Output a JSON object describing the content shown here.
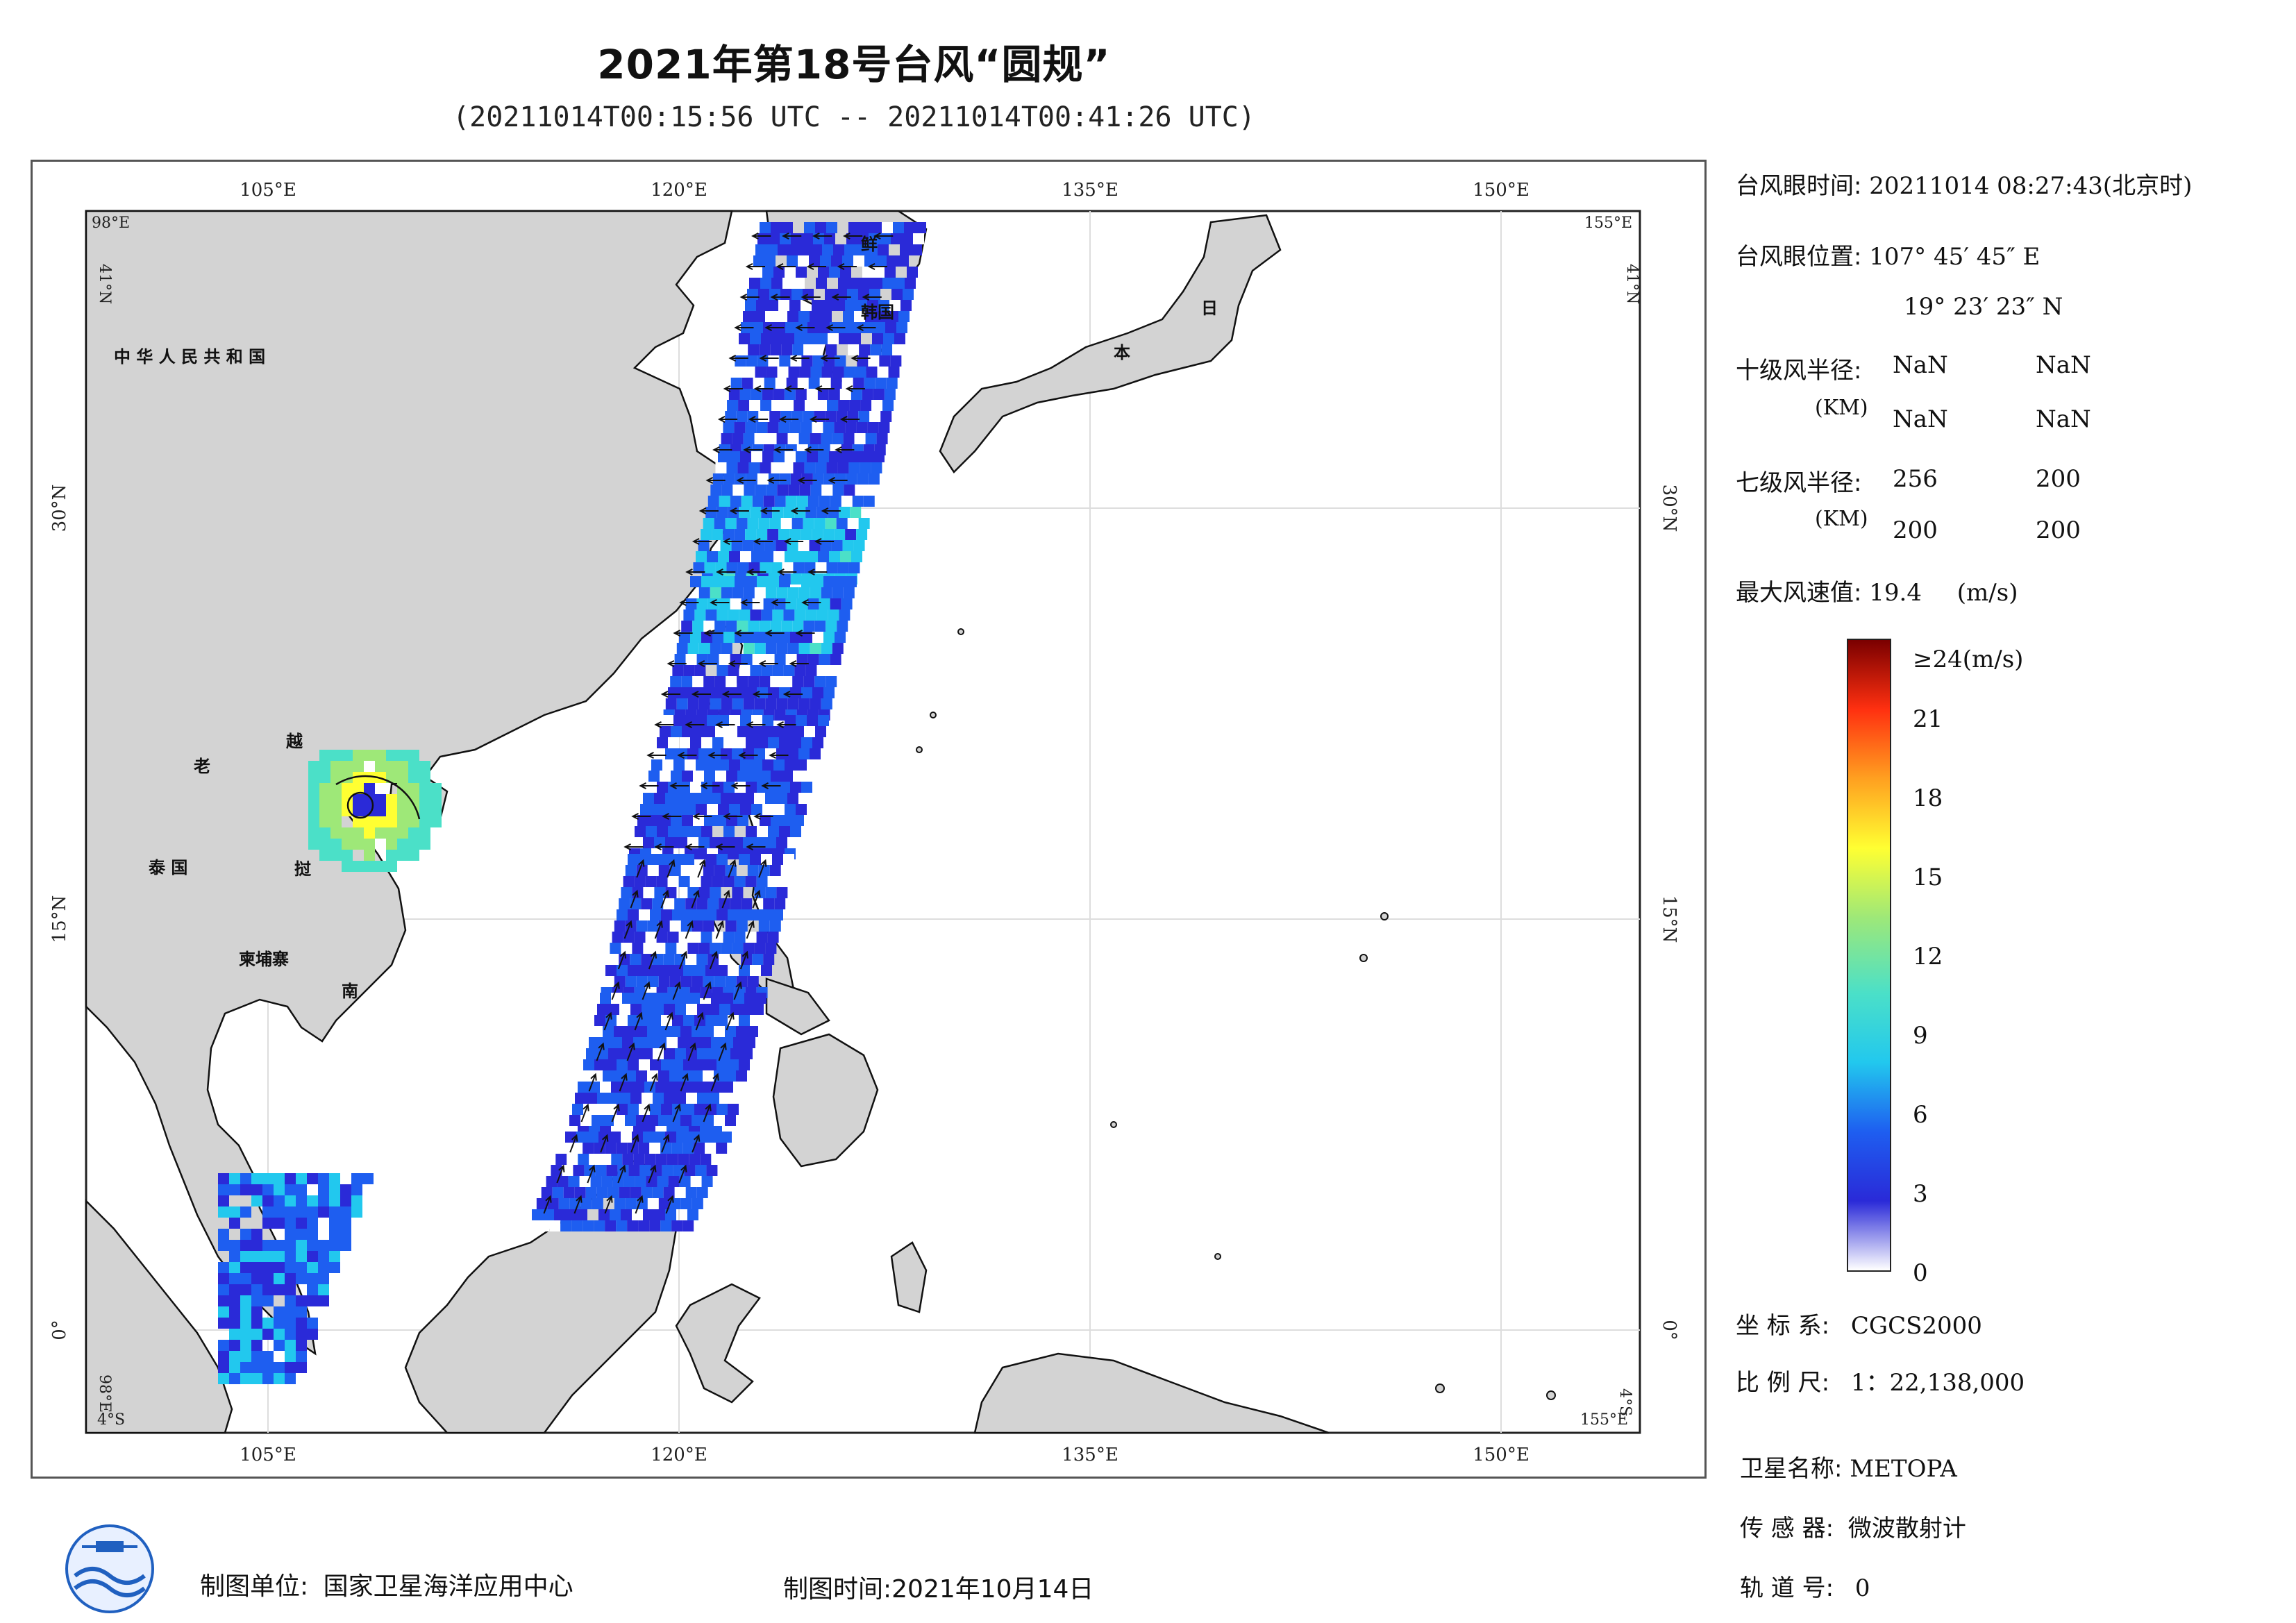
{
  "title": "2021年第18号台风“圆规”",
  "subtitle": "(20211014T00:15:56 UTC -- 20211014T00:41:26 UTC)",
  "map": {
    "lon_ticks": [
      "105°E",
      "120°E",
      "135°E",
      "150°E"
    ],
    "lat_ticks": [
      "30°N",
      "15°N",
      "0°"
    ],
    "corner_labels": {
      "top_left_lon": "98°E",
      "top_left_lat": "41°N",
      "top_right_lon": "155°E",
      "top_right_lat": "41°N",
      "bottom_left_lon": "98°E",
      "bottom_left_lat": "4°S",
      "bottom_right_lon": "155°E",
      "bottom_right_lat": "4°S"
    },
    "country_labels": [
      "中 华 人 民 共 和 国",
      "老",
      "越",
      "泰 国",
      "挝",
      "柬埔寨",
      "南",
      "鲜",
      "韩国",
      "日",
      "本"
    ],
    "colors": {
      "land": "#d3d3d3",
      "ocean": "#ffffff",
      "coast": "#111111"
    }
  },
  "info": {
    "eye_time_label": "台风眼时间:",
    "eye_time_value": "20211014 08:27:43(北京时)",
    "eye_pos_label": "台风眼位置:",
    "eye_pos_lon": "107° 45′ 45″ E",
    "eye_pos_lat": "19° 23′ 23″ N",
    "r10_label": "十级风半径:",
    "r10_unit": "(KM)",
    "r10_values": [
      "NaN",
      "NaN",
      "NaN",
      "NaN"
    ],
    "r7_label": "七级风半径:",
    "r7_unit": "(KM)",
    "r7_values": [
      "256",
      "200",
      "200",
      "200"
    ],
    "max_wind_label": "最大风速值:",
    "max_wind_value": "19.4",
    "max_wind_unit": "(m/s)"
  },
  "colorbar": {
    "min": 0,
    "max": 24,
    "top_label": "≥24(m/s)",
    "ticks": [
      "21",
      "18",
      "15",
      "12",
      "9",
      "6",
      "3",
      "0"
    ],
    "colors": [
      "#ffffff",
      "#2a2ad8",
      "#1e5ef0",
      "#22c8ee",
      "#4be0c8",
      "#9ee878",
      "#ffff32",
      "#ffa020",
      "#ff3010",
      "#7a0000"
    ]
  },
  "meta": {
    "crs_label": "坐 标 系:",
    "crs_value": "CGCS2000",
    "scale_label": "比 例 尺:",
    "scale_value": "1：22,138,000",
    "satellite_label": "卫星名称:",
    "satellite_value": "METOPA",
    "sensor_label": "传 感 器:",
    "sensor_value": "微波散射计",
    "orbit_label": "轨 道 号:",
    "orbit_value": "0"
  },
  "footer": {
    "unit_label": "制图单位:",
    "unit_value": "国家卫星海洋应用中心",
    "time_label": "制图时间:",
    "time_value": "2021年10月14日"
  }
}
